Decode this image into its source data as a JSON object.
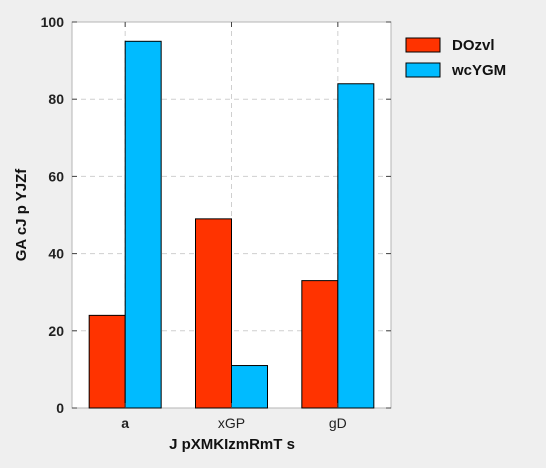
{
  "chart_data": {
    "type": "bar",
    "categories": [
      "a",
      "xGP",
      "gD"
    ],
    "series": [
      {
        "name": "DOzvl",
        "values": [
          24,
          49,
          33
        ],
        "color": "#ff3300"
      },
      {
        "name": "wcYGM",
        "values": [
          95,
          11,
          84
        ],
        "color": "#00bbff"
      }
    ],
    "xlabel": "J pXMKIzmRmT s",
    "ylabel": "GA cJ p YJZf",
    "ylim": [
      0,
      100
    ],
    "yticks": [
      0,
      20,
      40,
      60,
      80,
      100
    ],
    "grid": true,
    "legend_position": "outside-top-right"
  }
}
